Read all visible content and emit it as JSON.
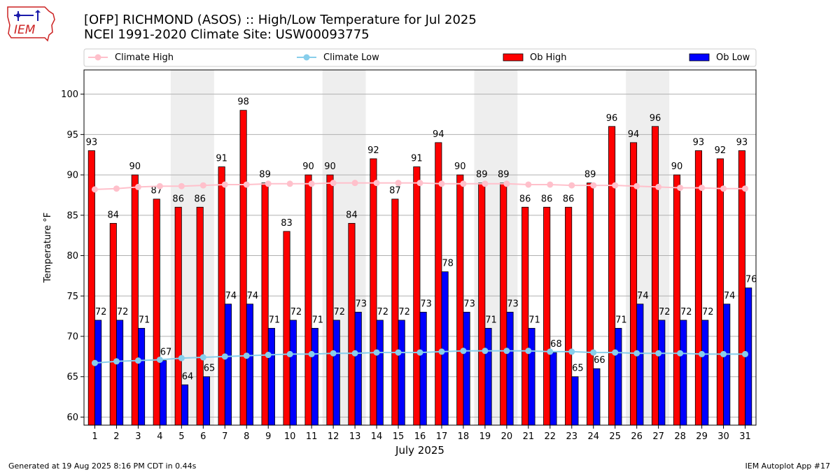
{
  "title": {
    "line1": "[OFP] RICHMOND (ASOS) :: High/Low Temperature for Jul 2025",
    "line2": "NCEI 1991-2020 Climate Site: USW00093775"
  },
  "logo": {
    "text": "IEM"
  },
  "footer": {
    "left": "Generated at 19 Aug 2025 8:16 PM CDT in 0.44s",
    "right": "IEM Autoplot App #17"
  },
  "colors": {
    "ob_high": "#ff0000",
    "ob_low": "#0000ff",
    "climate_high": "#ffc0cb",
    "climate_low": "#87ceeb",
    "weekend_band": "#eeeeee",
    "grid": "#b0b0b0"
  },
  "chart_data": {
    "type": "bar",
    "xlabel": "July 2025",
    "ylabel": "Temperature $^\\circ$F",
    "ylim": [
      59,
      103
    ],
    "yticks": [
      60,
      65,
      70,
      75,
      80,
      85,
      90,
      95,
      100
    ],
    "grid": "horizontal",
    "legend_placement": "top",
    "categories": [
      "1",
      "2",
      "3",
      "4",
      "5",
      "6",
      "7",
      "8",
      "9",
      "10",
      "11",
      "12",
      "13",
      "14",
      "15",
      "16",
      "17",
      "18",
      "19",
      "20",
      "21",
      "22",
      "23",
      "24",
      "25",
      "26",
      "27",
      "28",
      "29",
      "30",
      "31"
    ],
    "shaded_days": [
      [
        5,
        6
      ],
      [
        12,
        13
      ],
      [
        19,
        20
      ],
      [
        26,
        27
      ]
    ],
    "series": [
      {
        "name": "Climate High",
        "kind": "line",
        "values": [
          88.2,
          88.3,
          88.5,
          88.6,
          88.6,
          88.7,
          88.8,
          88.8,
          88.9,
          88.9,
          88.9,
          89.0,
          89.0,
          89.0,
          89.0,
          89.0,
          88.9,
          88.9,
          88.9,
          88.9,
          88.8,
          88.8,
          88.7,
          88.7,
          88.7,
          88.6,
          88.5,
          88.4,
          88.4,
          88.3,
          88.3
        ]
      },
      {
        "name": "Climate Low",
        "kind": "line",
        "values": [
          66.7,
          66.9,
          67.0,
          67.1,
          67.3,
          67.4,
          67.5,
          67.6,
          67.7,
          67.8,
          67.8,
          67.9,
          67.9,
          68.0,
          68.0,
          68.0,
          68.1,
          68.2,
          68.2,
          68.2,
          68.2,
          68.1,
          68.1,
          68.0,
          68.0,
          67.9,
          67.9,
          67.9,
          67.8,
          67.8,
          67.8
        ]
      },
      {
        "name": "Ob High",
        "kind": "bar",
        "values": [
          93,
          84,
          90,
          87,
          86,
          86,
          91,
          98,
          89,
          83,
          90,
          90,
          84,
          92,
          87,
          91,
          94,
          90,
          89,
          89,
          86,
          86,
          86,
          89,
          96,
          94,
          96,
          90,
          93,
          92,
          93
        ]
      },
      {
        "name": "Ob Low",
        "kind": "bar",
        "values": [
          72,
          72,
          71,
          67,
          64,
          65,
          74,
          74,
          71,
          72,
          71,
          72,
          73,
          72,
          72,
          73,
          78,
          73,
          71,
          73,
          71,
          68,
          65,
          66,
          71,
          74,
          72,
          72,
          72,
          74,
          76
        ]
      }
    ]
  }
}
